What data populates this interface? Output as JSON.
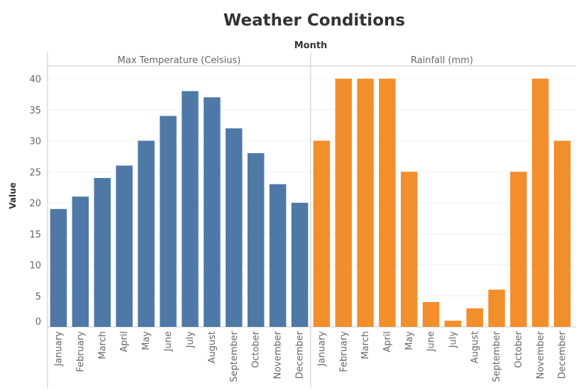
{
  "chart_data": {
    "type": "bar",
    "title": "Weather Conditions",
    "column_header": "Month",
    "ylabel": "Value",
    "ylim": [
      0,
      40
    ],
    "yticks": [
      0,
      5,
      10,
      15,
      20,
      25,
      30,
      35,
      40
    ],
    "grid": true,
    "categories": [
      "January",
      "February",
      "March",
      "April",
      "May",
      "June",
      "July",
      "August",
      "September",
      "October",
      "November",
      "December"
    ],
    "panels": [
      {
        "name": "Max Temperature (Celsius)",
        "color": "#4e79a7",
        "values": [
          19,
          21,
          24,
          26,
          30,
          34,
          38,
          37,
          32,
          28,
          23,
          20
        ]
      },
      {
        "name": "Rainfall (mm)",
        "color": "#f28e2b",
        "values": [
          30,
          40,
          40,
          40,
          25,
          4,
          1,
          3,
          6,
          25,
          40,
          30
        ]
      }
    ]
  }
}
